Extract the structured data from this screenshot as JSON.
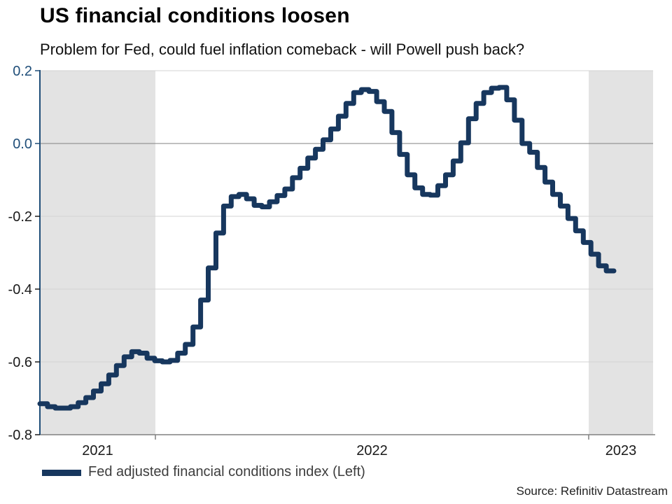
{
  "header": {
    "title": "US financial conditions loosen",
    "subtitle": "Problem for Fed, could fuel inflation comeback - will Powell push back?"
  },
  "legend": {
    "swatch_color": "#17375e",
    "label": "Fed adjusted financial conditions index (Left)"
  },
  "source": "Source: Refinitiv Datastream",
  "chart_data": {
    "type": "line",
    "line_style": "step",
    "title": "US financial conditions loosen",
    "xlabel": "",
    "ylabel": "",
    "ylim": [
      -0.8,
      0.2
    ],
    "grid": true,
    "legend_position": "bottom-left",
    "y_ticks": [
      0.2,
      0.0,
      -0.2,
      -0.4,
      -0.6,
      -0.8
    ],
    "y_tick_labels": [
      "0.2",
      "0.0",
      "-0.2",
      "-0.4",
      "-0.6",
      "-0.8"
    ],
    "x_tick_labels": [
      "2021",
      "2022",
      "2023"
    ],
    "shaded_year_bands": [
      "2021",
      "2023"
    ],
    "colors": {
      "line": "#17375e",
      "axis": "#1f4e79",
      "grid_light": "#d3d3d3",
      "grid_zero": "#808080",
      "band_fill": "#e3e3e3",
      "tick_label_positive": "#1f4e79",
      "tick_label_negative": "#1a1a1a",
      "x_label": "#1a1a1a"
    },
    "series": [
      {
        "name": "Fed adjusted financial conditions index (Left)",
        "color": "#17375e",
        "frequency": "weekly",
        "values": [
          -0.715,
          -0.723,
          -0.727,
          -0.727,
          -0.723,
          -0.712,
          -0.698,
          -0.68,
          -0.66,
          -0.636,
          -0.61,
          -0.586,
          -0.572,
          -0.576,
          -0.59,
          -0.597,
          -0.6,
          -0.596,
          -0.576,
          -0.552,
          -0.504,
          -0.43,
          -0.342,
          -0.246,
          -0.172,
          -0.146,
          -0.14,
          -0.152,
          -0.17,
          -0.174,
          -0.16,
          -0.143,
          -0.125,
          -0.094,
          -0.068,
          -0.04,
          -0.016,
          0.01,
          0.04,
          0.075,
          0.11,
          0.14,
          0.148,
          0.143,
          0.115,
          0.088,
          0.03,
          -0.03,
          -0.086,
          -0.122,
          -0.14,
          -0.142,
          -0.116,
          -0.086,
          -0.048,
          0.002,
          0.068,
          0.11,
          0.14,
          0.152,
          0.154,
          0.12,
          0.064,
          0.0,
          -0.024,
          -0.066,
          -0.106,
          -0.14,
          -0.172,
          -0.206,
          -0.24,
          -0.272,
          -0.304,
          -0.336,
          -0.35
        ]
      }
    ]
  }
}
